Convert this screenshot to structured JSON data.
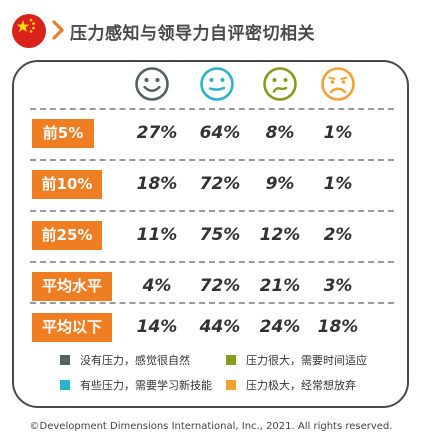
{
  "title": "压力感知与领导力自评密切相关",
  "faces": [
    {
      "icon": "smiling-face-icon",
      "color": "#555f66"
    },
    {
      "icon": "neutral-face-icon",
      "color": "#27b3c9"
    },
    {
      "icon": "worried-face-icon",
      "color": "#8a9a1c"
    },
    {
      "icon": "sad-face-icon",
      "color": "#f2a134"
    }
  ],
  "rows": [
    {
      "label": "前5%",
      "values": [
        "27%",
        "64%",
        "8%",
        "1%"
      ]
    },
    {
      "label": "前10%",
      "values": [
        "18%",
        "72%",
        "9%",
        "1%"
      ]
    },
    {
      "label": "前25%",
      "values": [
        "11%",
        "75%",
        "12%",
        "2%"
      ]
    },
    {
      "label": "平均水平",
      "values": [
        "4%",
        "72%",
        "21%",
        "3%"
      ]
    },
    {
      "label": "平均以下",
      "values": [
        "14%",
        "44%",
        "24%",
        "18%"
      ]
    }
  ],
  "legend": [
    {
      "text": "没有压力，感觉很自然",
      "color": "#555f66"
    },
    {
      "text": "压力很大，需要时间适应",
      "color": "#8a9a1c"
    },
    {
      "text": "有些压力，需要学习新技能",
      "color": "#27b3c9"
    },
    {
      "text": "压力极大，经常想放弃",
      "color": "#f2a134"
    }
  ],
  "footer": "©Development Dimensions International, Inc., 2021. All rights reserved."
}
